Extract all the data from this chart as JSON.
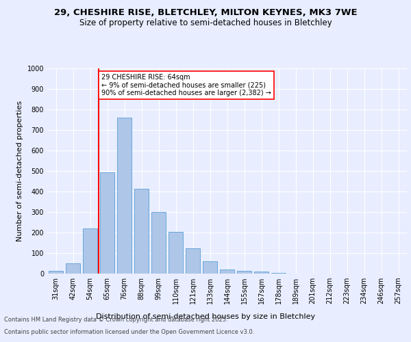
{
  "title": "29, CHESHIRE RISE, BLETCHLEY, MILTON KEYNES, MK3 7WE",
  "subtitle": "Size of property relative to semi-detached houses in Bletchley",
  "xlabel": "Distribution of semi-detached houses by size in Bletchley",
  "ylabel": "Number of semi-detached properties",
  "categories": [
    "31sqm",
    "42sqm",
    "54sqm",
    "65sqm",
    "76sqm",
    "88sqm",
    "99sqm",
    "110sqm",
    "121sqm",
    "133sqm",
    "144sqm",
    "155sqm",
    "167sqm",
    "178sqm",
    "189sqm",
    "201sqm",
    "212sqm",
    "223sqm",
    "234sqm",
    "246sqm",
    "257sqm"
  ],
  "bar_heights": [
    12,
    50,
    220,
    495,
    760,
    415,
    300,
    205,
    125,
    60,
    20,
    12,
    10,
    4,
    0,
    0,
    0,
    0,
    0,
    0,
    0
  ],
  "bar_color": "#aec6e8",
  "bar_edge_color": "#5a9fd4",
  "annotation_text_line1": "29 CHESHIRE RISE: 64sqm",
  "annotation_text_line2": "← 9% of semi-detached houses are smaller (225)",
  "annotation_text_line3": "90% of semi-detached houses are larger (2,382) →",
  "ylim": [
    0,
    1000
  ],
  "yticks": [
    0,
    100,
    200,
    300,
    400,
    500,
    600,
    700,
    800,
    900,
    1000
  ],
  "bg_color": "#e8eeff",
  "plot_bg_color": "#e8eeff",
  "footer_line1": "Contains HM Land Registry data © Crown copyright and database right 2025.",
  "footer_line2": "Contains public sector information licensed under the Open Government Licence v3.0.",
  "title_fontsize": 9.5,
  "subtitle_fontsize": 8.5,
  "xlabel_fontsize": 8,
  "ylabel_fontsize": 8,
  "tick_fontsize": 7,
  "footer_fontsize": 6
}
